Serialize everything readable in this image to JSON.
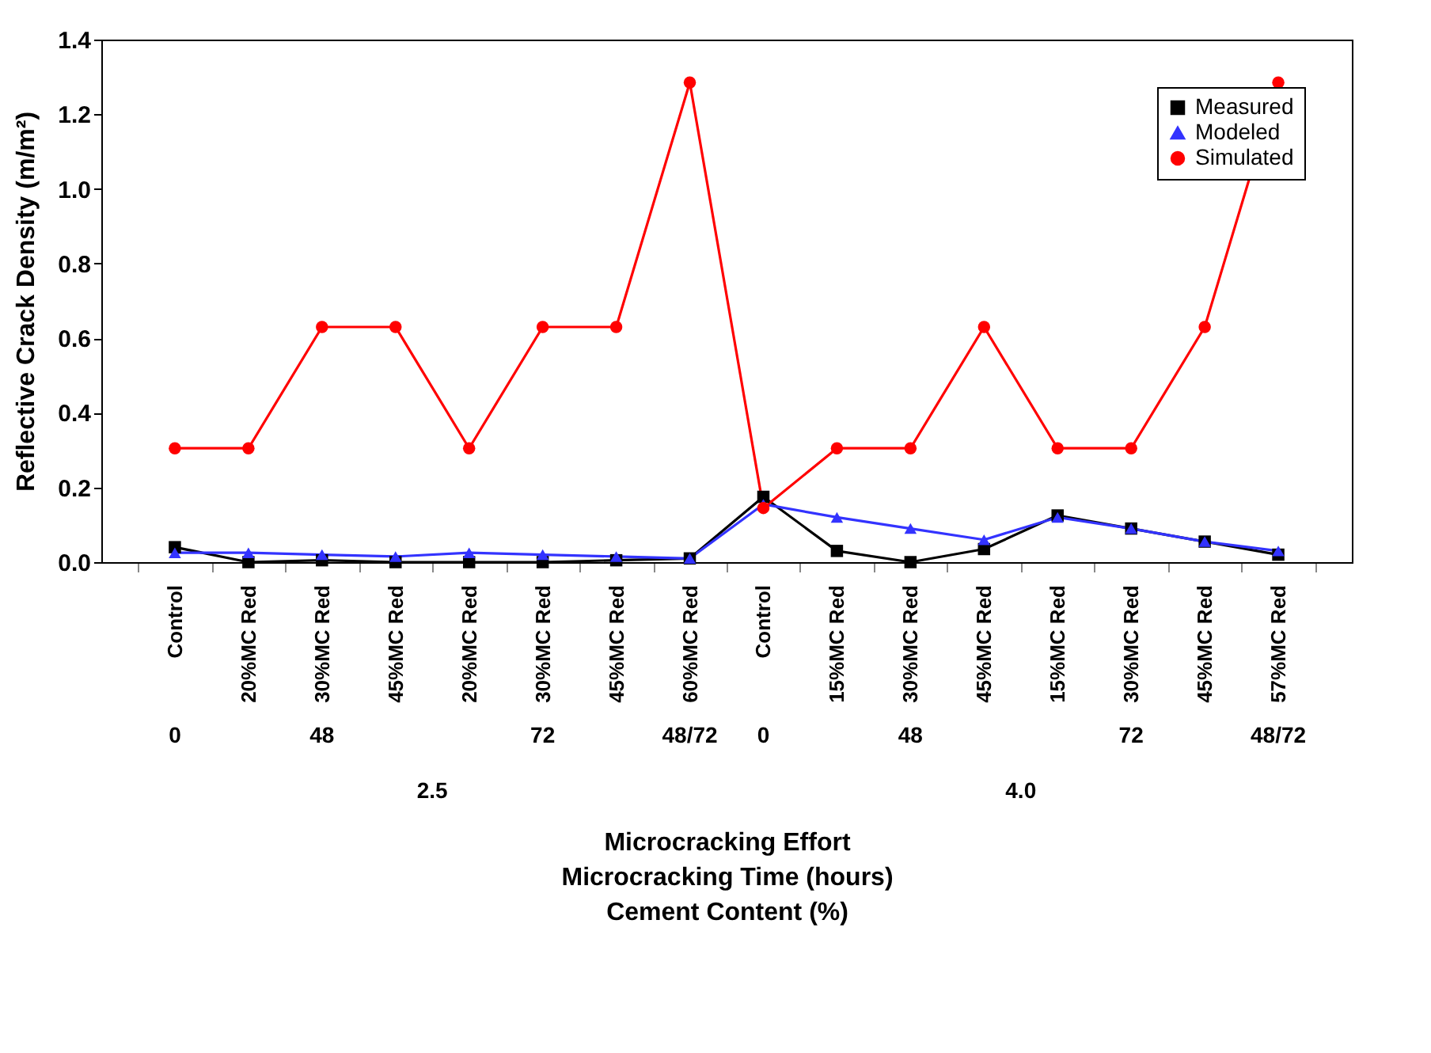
{
  "chart_data": {
    "type": "line",
    "categories": [
      "Control",
      "20%MC Red",
      "30%MC Red",
      "45%MC Red",
      "20%MC Red",
      "30%MC Red",
      "45%MC Red",
      "60%MC Red",
      "Control",
      "15%MC Red",
      "30%MC Red",
      "45%MC Red",
      "15%MC Red",
      "30%MC Red",
      "45%MC Red",
      "57%MC Red"
    ],
    "series": [
      {
        "name": "Measured",
        "color": "#000000",
        "marker": "square",
        "values": [
          0.04,
          0.0,
          0.005,
          0.0,
          0.0,
          0.0,
          0.005,
          0.01,
          0.175,
          0.03,
          0.0,
          0.035,
          0.125,
          0.09,
          0.055,
          0.02
        ]
      },
      {
        "name": "Modeled",
        "color": "#3333ff",
        "marker": "triangle",
        "values": [
          0.025,
          0.025,
          0.02,
          0.015,
          0.025,
          0.02,
          0.015,
          0.01,
          0.155,
          0.12,
          0.09,
          0.06,
          0.12,
          0.09,
          0.055,
          0.03
        ]
      },
      {
        "name": "Simulated",
        "color": "#ff0000",
        "marker": "circle",
        "values": [
          0.305,
          0.305,
          0.63,
          0.63,
          0.305,
          0.63,
          0.63,
          1.285,
          0.145,
          0.305,
          0.305,
          0.63,
          0.305,
          0.305,
          0.63,
          1.285
        ]
      }
    ],
    "ylabel": "Reflective Crack Density (m/m²)",
    "xlabel": "Microcracking Effort\nMicrocracking Time (hours)\nCement Content (%)",
    "ylim": [
      0,
      1.4
    ],
    "yticks": [
      {
        "value": 0,
        "label": "0.0"
      },
      {
        "value": 0.2,
        "label": "0.2"
      },
      {
        "value": 0.4,
        "label": "0.4"
      },
      {
        "value": 0.6,
        "label": "0.6"
      },
      {
        "value": 0.8,
        "label": "0.8"
      },
      {
        "value": 1.0,
        "label": "1.0"
      },
      {
        "value": 1.2,
        "label": "1.2"
      },
      {
        "value": 1.4,
        "label": "1.4"
      }
    ],
    "annotations": [
      "0",
      "48",
      "72",
      "48/72",
      "0",
      "48",
      "72",
      "48/72",
      "2.5",
      "4.0"
    ],
    "grid": false,
    "legend": "top right",
    "line_style": "solid"
  }
}
